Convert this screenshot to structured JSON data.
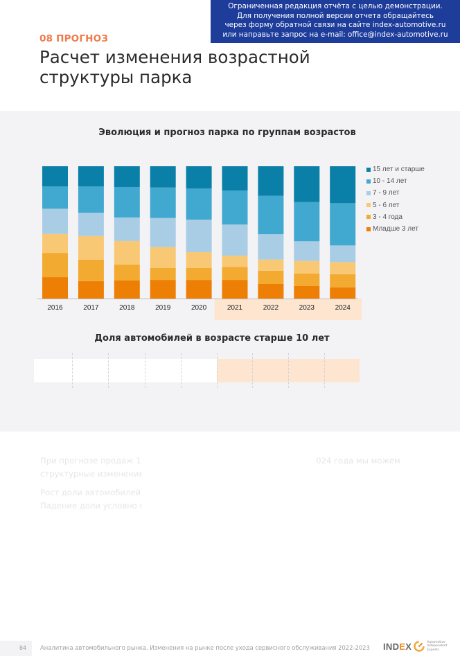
{
  "banner": {
    "lines": [
      "Ограниченная редакция отчёта с целью демонстрации.",
      "Для получения полной версии отчета обращайтесь",
      "через форму обратной связи на сайте index-automotive.ru",
      "или направьте запрос на e-mail: office@index-automotive.ru"
    ]
  },
  "header": {
    "section_label": "08 ПРОГНОЗ",
    "title": "Расчет изменения возрастной структуры парка"
  },
  "colors": {
    "banner_bg": "#1e3d9b",
    "section_label": "#ee7b4a",
    "forecast_highlight": "#fde5d0",
    "panel_bg": "#f3f3f6"
  },
  "chart_data": [
    {
      "type": "bar",
      "stacked": true,
      "normalized": true,
      "title": "Эволюция и прогноз парка по группам возрастов",
      "xlabel": "",
      "ylabel": "",
      "ylim": [
        0,
        100
      ],
      "unit": "%",
      "grid": false,
      "legend_position": "right",
      "categories": [
        "2016",
        "2017",
        "2018",
        "2019",
        "2020",
        "2021",
        "2022",
        "2023",
        "2024"
      ],
      "forecast_categories": [
        "2021",
        "2022",
        "2023",
        "2024"
      ],
      "series": [
        {
          "name": "Младше 3 лет",
          "color": "#ee7f05",
          "values": [
            16.2,
            13.2,
            13.8,
            14.1,
            14.1,
            14.1,
            11.0,
            9.6,
            8.5
          ]
        },
        {
          "name": "3 - 4 года",
          "color": "#f3aa30",
          "values": [
            18.3,
            16.2,
            11.9,
            9.1,
            9.1,
            9.8,
            10.1,
            9.4,
            9.9
          ]
        },
        {
          "name": "5 - 6 лет",
          "color": "#f8c874",
          "values": [
            14.3,
            17.8,
            17.8,
            15.7,
            11.9,
            8.5,
            8.4,
            9.4,
            9.2
          ]
        },
        {
          "name": "7 - 9 лет",
          "color": "#a9cde4",
          "values": [
            19.1,
            17.6,
            17.8,
            22.0,
            24.6,
            23.6,
            19.1,
            14.9,
            12.5
          ]
        },
        {
          "name": "10 - 14 лет",
          "color": "#41a8cf",
          "values": [
            16.9,
            19.9,
            23.0,
            23.0,
            23.6,
            25.7,
            29.1,
            29.6,
            31.9
          ]
        },
        {
          "name": "15 лет и старше",
          "color": "#0a7fa8",
          "values": [
            15.2,
            15.2,
            15.7,
            16.1,
            16.8,
            18.3,
            22.3,
            27.1,
            27.9
          ]
        }
      ],
      "legend_order": [
        "15 лет и старше",
        "10 - 14 лет",
        "7 - 9 лет",
        "5 - 6 лет",
        "3 - 4 года",
        "Младше 3 лет"
      ]
    },
    {
      "type": "table",
      "title": "Доля автомобилей в возрасте старше 10 лет",
      "categories": [
        "2016",
        "2017",
        "2018",
        "2019",
        "2020",
        "2021",
        "2022",
        "2023",
        "2024"
      ],
      "forecast_categories": [
        "2021",
        "2022",
        "2023",
        "2024"
      ],
      "values": [
        null,
        null,
        null,
        null,
        null,
        null,
        null,
        null,
        null
      ]
    }
  ],
  "body": {
    "paragraphs": [
      "При прогнозе продаж 1 млн автомобилей в 2024 году, к концу 2024 года мы можем структурные изменения активного автопарка:",
      "Рост доли автомобилей 10-",
      "Падение доли условно гар… ~39%"
    ]
  },
  "footer": {
    "page_number": "84",
    "text": "Аналитика автомобильного рынка. Изменения на рынке после ухода сервисного обслуживания 2022-2023",
    "logo_word_a": "IND",
    "logo_word_e": "E",
    "logo_word_b": "X",
    "logo_tagline": [
      "Automotive",
      "Independent",
      "Experts"
    ]
  }
}
